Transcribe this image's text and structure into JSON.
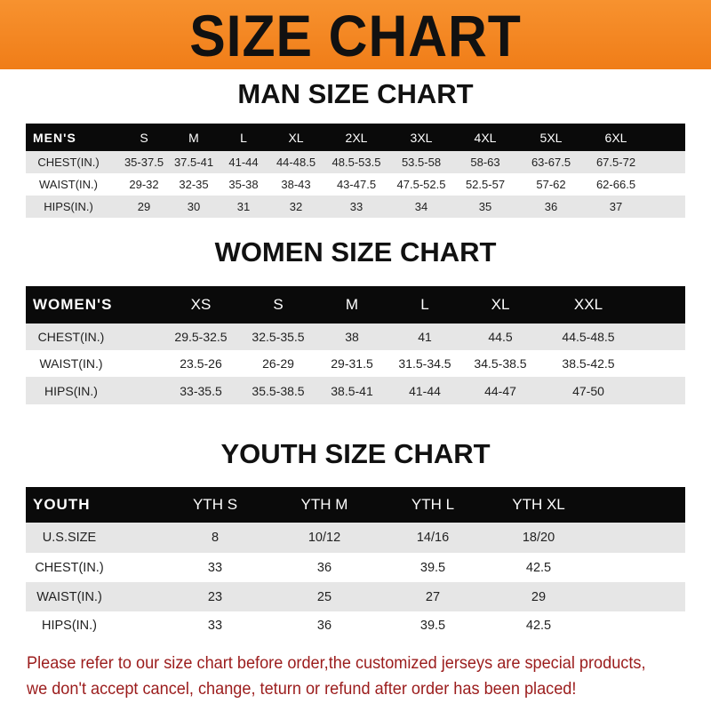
{
  "title": "SIZE CHART",
  "colors": {
    "banner": "#f5821f",
    "header_row": "#0a0a0a",
    "note_text": "#9b1c1c"
  },
  "men": {
    "title": "MAN SIZE CHART",
    "header": [
      "MEN'S",
      "S",
      "M",
      "L",
      "XL",
      "2XL",
      "3XL",
      "4XL",
      "5XL",
      "6XL"
    ],
    "rows": [
      [
        "CHEST(IN.)",
        "35-37.5",
        "37.5-41",
        "41-44",
        "44-48.5",
        "48.5-53.5",
        "53.5-58",
        "58-63",
        "63-67.5",
        "67.5-72"
      ],
      [
        "WAIST(IN.)",
        "29-32",
        "32-35",
        "35-38",
        "38-43",
        "43-47.5",
        "47.5-52.5",
        "52.5-57",
        "57-62",
        "62-66.5"
      ],
      [
        "HIPS(IN.)",
        "29",
        "30",
        "31",
        "32",
        "33",
        "34",
        "35",
        "36",
        "37"
      ]
    ]
  },
  "women": {
    "title": "WOMEN SIZE CHART",
    "header": [
      "WOMEN'S",
      "XS",
      "S",
      "M",
      "L",
      "XL",
      "XXL"
    ],
    "rows": [
      [
        "CHEST(IN.)",
        "29.5-32.5",
        "32.5-35.5",
        "38",
        "41",
        "44.5",
        "44.5-48.5"
      ],
      [
        "WAIST(IN.)",
        "23.5-26",
        "26-29",
        "29-31.5",
        "31.5-34.5",
        "34.5-38.5",
        "38.5-42.5"
      ],
      [
        "HIPS(IN.)",
        "33-35.5",
        "35.5-38.5",
        "38.5-41",
        "41-44",
        "44-47",
        "47-50"
      ]
    ]
  },
  "youth": {
    "title": "YOUTH SIZE CHART",
    "header": [
      "YOUTH",
      "YTH S",
      "YTH M",
      "YTH L",
      "YTH XL"
    ],
    "rows": [
      [
        "U.S.SIZE",
        "8",
        "10/12",
        "14/16",
        "18/20"
      ],
      [
        "CHEST(IN.)",
        "33",
        "36",
        "39.5",
        "42.5"
      ],
      [
        "WAIST(IN.)",
        "23",
        "25",
        "27",
        "29"
      ],
      [
        "HIPS(IN.)",
        "33",
        "36",
        "39.5",
        "42.5"
      ]
    ]
  },
  "note": {
    "line1": "Please refer to our size chart before order,the customized jerseys are special products,",
    "line2": "we don't accept cancel, change, teturn or refund after order has been placed!"
  }
}
